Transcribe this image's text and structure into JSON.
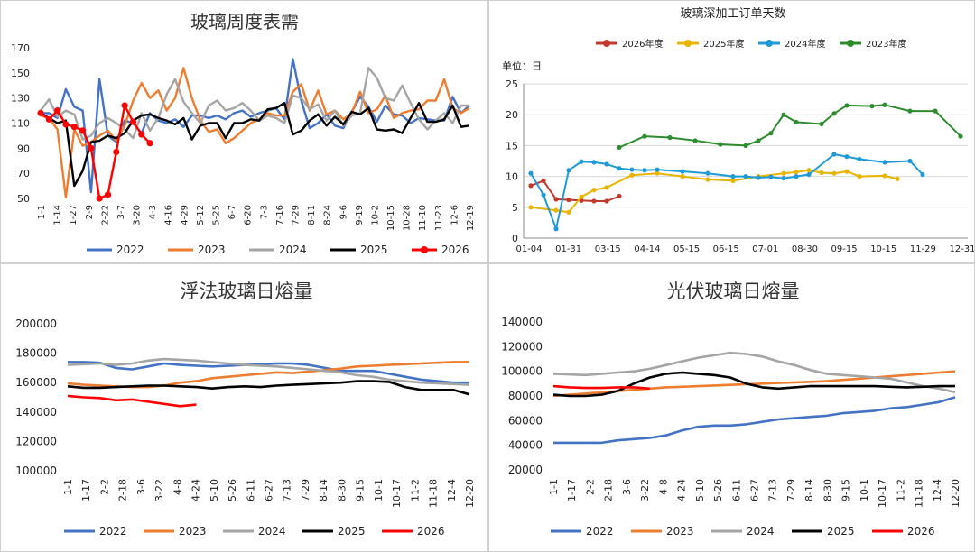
{
  "colors": {
    "s2022": "#4472C4",
    "s2023": "#ED7D31",
    "s2024": "#A5A5A5",
    "s2025": "#000000",
    "s2026": "#FF0000",
    "c2026": "#C0392B",
    "c2025": "#E8B400",
    "c2024": "#1E9BD7",
    "c2023": "#2E8B2E"
  },
  "chart_data": [
    {
      "type": "line",
      "title": "玻璃周度表需",
      "ylim": [
        50,
        170
      ],
      "yticks": [
        "50",
        "70",
        "90",
        "110",
        "130",
        "150",
        "170"
      ],
      "xticks": [
        "1-1",
        "1-14",
        "1-27",
        "2-9",
        "2-22",
        "3-7",
        "3-20",
        "4-3",
        "4-16",
        "4-29",
        "5-12",
        "5-25",
        "6-7",
        "6-20",
        "7-3",
        "7-16",
        "7-29",
        "8-11",
        "8-24",
        "9-6",
        "9-19",
        "10-2",
        "10-15",
        "10-28",
        "11-10",
        "11-23",
        "12-6",
        "12-19"
      ],
      "grid": false,
      "legend": "bottom",
      "series": [
        {
          "name": "2022",
          "color": "#4472C4",
          "marker": false,
          "values": [
            118,
            118,
            114,
            137,
            123,
            120,
            55,
            145,
            100,
            95,
            112,
            110,
            102,
            118,
            112,
            110,
            113,
            107,
            116,
            116,
            114,
            116,
            113,
            118,
            120,
            115,
            118,
            120,
            122,
            113,
            161,
            128,
            106,
            110,
            117,
            108,
            106,
            119,
            131,
            123,
            111,
            124,
            117,
            116,
            110,
            114,
            113,
            112,
            112,
            131,
            118,
            124
          ]
        },
        {
          "name": "2023",
          "color": "#ED7D31",
          "marker": false,
          "values": [
            116,
            114,
            105,
            51,
            105,
            92,
            95,
            100,
            104,
            96,
            108,
            128,
            142,
            130,
            136,
            120,
            130,
            154,
            130,
            112,
            103,
            105,
            94,
            98,
            104,
            110,
            113,
            118,
            116,
            116,
            135,
            141,
            120,
            136,
            117,
            120,
            113,
            118,
            135,
            118,
            121,
            132,
            114,
            118,
            120,
            121,
            128,
            128,
            145,
            122,
            118,
            122
          ]
        },
        {
          "name": "2024",
          "color": "#A5A5A5",
          "marker": false,
          "values": [
            120,
            129,
            115,
            120,
            117,
            97,
            100,
            110,
            114,
            110,
            105,
            98,
            118,
            104,
            114,
            133,
            145,
            127,
            118,
            110,
            124,
            128,
            120,
            122,
            126,
            120,
            112,
            116,
            114,
            110,
            132,
            130,
            121,
            125,
            112,
            120,
            108,
            116,
            118,
            154,
            146,
            130,
            128,
            140,
            126,
            113,
            105,
            112,
            118,
            110,
            124,
            124
          ]
        },
        {
          "name": "2025",
          "color": "#000000",
          "marker": false,
          "values": [
            118,
            114,
            110,
            112,
            60,
            72,
            95,
            96,
            100,
            98,
            102,
            112,
            116,
            117,
            114,
            112,
            109,
            114,
            97,
            108,
            110,
            110,
            98,
            110,
            110,
            113,
            112,
            121,
            122,
            126,
            101,
            104,
            112,
            117,
            108,
            115,
            109,
            119,
            117,
            122,
            105,
            104,
            105,
            102,
            114,
            126,
            111,
            111,
            113,
            124,
            107,
            108
          ]
        },
        {
          "name": "2026",
          "color": "#FF0000",
          "marker": true,
          "values": [
            118,
            113,
            120,
            109,
            107,
            104,
            90,
            50,
            53,
            87,
            124,
            111,
            101,
            94
          ]
        }
      ]
    },
    {
      "type": "line",
      "title": "玻璃深加工订单天数",
      "ylabel": "单位：日",
      "ylim": [
        0,
        25
      ],
      "yticks": [
        "0",
        "5",
        "10",
        "15",
        "20",
        "25"
      ],
      "xticks": [
        "01-04",
        "01-31",
        "03-15",
        "04-14",
        "05-15",
        "06-15",
        "07-01",
        "08-30",
        "09-15",
        "10-15",
        "11-29",
        "12-31"
      ],
      "grid": true,
      "legend": "top",
      "series": [
        {
          "name": "2026年度",
          "color": "#C0392B",
          "marker": true,
          "points": [
            [
              0,
              8.5
            ],
            [
              1,
              9.3
            ],
            [
              2,
              6.3
            ],
            [
              3,
              6.2
            ],
            [
              4,
              6.1
            ],
            [
              5,
              6.0
            ],
            [
              6,
              6.0
            ],
            [
              7,
              6.8
            ]
          ]
        },
        {
          "name": "2025年度",
          "color": "#E8B400",
          "marker": true,
          "points": [
            [
              0,
              5.0
            ],
            [
              2,
              4.5
            ],
            [
              3,
              4.2
            ],
            [
              4,
              6.7
            ],
            [
              5,
              7.8
            ],
            [
              6,
              8.2
            ],
            [
              8,
              10.2
            ],
            [
              10,
              10.5
            ],
            [
              12,
              10.0
            ],
            [
              14,
              9.5
            ],
            [
              16,
              9.3
            ],
            [
              18,
              10.0
            ],
            [
              20,
              10.5
            ],
            [
              21,
              10.7
            ],
            [
              22,
              11.0
            ],
            [
              23,
              10.6
            ],
            [
              24,
              10.5
            ],
            [
              25,
              10.8
            ],
            [
              26,
              10.0
            ],
            [
              28,
              10.1
            ],
            [
              29,
              9.6
            ]
          ]
        },
        {
          "name": "2024年度",
          "color": "#1E9BD7",
          "marker": true,
          "points": [
            [
              0,
              10.5
            ],
            [
              1,
              7.0
            ],
            [
              2,
              1.5
            ],
            [
              3,
              11.0
            ],
            [
              4,
              12.4
            ],
            [
              5,
              12.3
            ],
            [
              6,
              12.0
            ],
            [
              7,
              11.3
            ],
            [
              8,
              11.1
            ],
            [
              9,
              11.0
            ],
            [
              10,
              11.1
            ],
            [
              12,
              10.8
            ],
            [
              14,
              10.5
            ],
            [
              16,
              10.0
            ],
            [
              17,
              10.0
            ],
            [
              18,
              9.8
            ],
            [
              19,
              9.9
            ],
            [
              20,
              9.7
            ],
            [
              21,
              10.0
            ],
            [
              22,
              10.3
            ],
            [
              24,
              13.6
            ],
            [
              25,
              13.2
            ],
            [
              26,
              12.8
            ],
            [
              28,
              12.3
            ],
            [
              30,
              12.5
            ],
            [
              31,
              10.3
            ]
          ]
        },
        {
          "name": "2023年度",
          "color": "#2E8B2E",
          "marker": true,
          "points": [
            [
              7,
              14.7
            ],
            [
              9,
              16.5
            ],
            [
              11,
              16.3
            ],
            [
              13,
              15.8
            ],
            [
              15,
              15.2
            ],
            [
              17,
              15.0
            ],
            [
              18,
              15.8
            ],
            [
              19,
              17.0
            ],
            [
              20,
              20.0
            ],
            [
              21,
              18.8
            ],
            [
              23,
              18.5
            ],
            [
              24,
              20.2
            ],
            [
              25,
              21.5
            ],
            [
              27,
              21.4
            ],
            [
              28,
              21.6
            ],
            [
              30,
              20.6
            ],
            [
              32,
              20.6
            ],
            [
              34,
              16.5
            ]
          ]
        }
      ]
    },
    {
      "type": "line",
      "title": "浮法玻璃日熔量",
      "ylim": [
        100000,
        200000
      ],
      "yticks": [
        "100000",
        "120000",
        "140000",
        "160000",
        "180000",
        "200000"
      ],
      "xticks": [
        "1-1",
        "1-17",
        "2-2",
        "2-18",
        "3-6",
        "3-22",
        "4-8",
        "4-24",
        "5-10",
        "5-26",
        "6-11",
        "6-27",
        "7-13",
        "7-29",
        "8-14",
        "8-30",
        "9-15",
        "10-1",
        "10-17",
        "11-2",
        "11-18",
        "12-4",
        "12-20"
      ],
      "grid": false,
      "legend": "bottom",
      "series": [
        {
          "name": "2022",
          "color": "#4472C4",
          "values": [
            174000,
            174000,
            173500,
            170000,
            169000,
            171000,
            173000,
            172000,
            171500,
            171000,
            171500,
            172000,
            172500,
            173000,
            173000,
            172000,
            170000,
            168000,
            168000,
            168000,
            166000,
            164000,
            162000,
            161000,
            160000,
            160000
          ]
        },
        {
          "name": "2023",
          "color": "#ED7D31",
          "values": [
            159500,
            158500,
            158000,
            157500,
            157000,
            157000,
            158000,
            160000,
            161000,
            163000,
            164000,
            165000,
            166000,
            167000,
            166500,
            167500,
            168500,
            169500,
            171000,
            171500,
            172000,
            172500,
            173000,
            173500,
            174000,
            174000
          ]
        },
        {
          "name": "2024",
          "color": "#A5A5A5",
          "values": [
            172000,
            172500,
            173000,
            172000,
            173000,
            175000,
            176000,
            175500,
            175000,
            174000,
            173000,
            172000,
            171500,
            171000,
            170000,
            169000,
            168000,
            167000,
            165000,
            164000,
            162000,
            161000,
            160000,
            159500,
            159000,
            158500
          ]
        },
        {
          "name": "2025",
          "color": "#000000",
          "values": [
            157500,
            156500,
            156500,
            157000,
            157500,
            158000,
            158000,
            157500,
            157000,
            156000,
            157000,
            157500,
            157000,
            158000,
            158500,
            159000,
            159500,
            160000,
            161000,
            161000,
            160500,
            157000,
            155000,
            155000,
            155000,
            152000
          ]
        },
        {
          "name": "2026",
          "color": "#FF0000",
          "values": [
            151000,
            150000,
            149500,
            148000,
            148500,
            147000,
            145500,
            144000,
            145000
          ]
        }
      ]
    },
    {
      "type": "line",
      "title": "光伏玻璃日熔量",
      "ylim": [
        20000,
        140000
      ],
      "yticks": [
        "20000",
        "40000",
        "60000",
        "80000",
        "100000",
        "120000",
        "140000"
      ],
      "xticks": [
        "1-1",
        "1-17",
        "2-2",
        "2-18",
        "3-6",
        "3-22",
        "4-8",
        "4-24",
        "5-10",
        "5-26",
        "6-11",
        "6-27",
        "7-13",
        "7-29",
        "8-14",
        "8-30",
        "9-15",
        "10-1",
        "10-17",
        "11-2",
        "11-18",
        "12-4",
        "12-20"
      ],
      "grid": false,
      "legend": "bottom",
      "series": [
        {
          "name": "2022",
          "color": "#4472C4",
          "values": [
            42000,
            42000,
            42000,
            42000,
            44000,
            45000,
            46000,
            48000,
            52000,
            55000,
            56000,
            56000,
            57000,
            59000,
            61000,
            62000,
            63000,
            64000,
            66000,
            67000,
            68000,
            70000,
            71000,
            73000,
            75000,
            79000
          ]
        },
        {
          "name": "2023",
          "color": "#ED7D31",
          "values": [
            80000,
            81000,
            82000,
            83000,
            84000,
            85000,
            86000,
            87000,
            87500,
            88000,
            88500,
            89000,
            89500,
            90000,
            90500,
            91000,
            91500,
            92000,
            93000,
            94000,
            95000,
            96000,
            97000,
            98000,
            99000,
            100000
          ]
        },
        {
          "name": "2024",
          "color": "#A5A5A5",
          "values": [
            98000,
            97500,
            97000,
            98000,
            99000,
            100000,
            102000,
            105000,
            108000,
            111000,
            113000,
            115000,
            114000,
            112000,
            108000,
            105000,
            101000,
            98000,
            97000,
            96000,
            95000,
            94000,
            91000,
            88000,
            86000,
            83000
          ]
        },
        {
          "name": "2025",
          "color": "#000000",
          "values": [
            81000,
            80000,
            80000,
            81000,
            84000,
            90000,
            95000,
            98000,
            99000,
            98000,
            97000,
            95000,
            90000,
            87000,
            86000,
            87000,
            88000,
            88000,
            88000,
            88000,
            88000,
            87500,
            87000,
            87500,
            88000,
            88000
          ]
        },
        {
          "name": "2026",
          "color": "#FF0000",
          "values": [
            88000,
            87000,
            86500,
            86500,
            87000,
            87000,
            86000
          ]
        }
      ]
    }
  ]
}
